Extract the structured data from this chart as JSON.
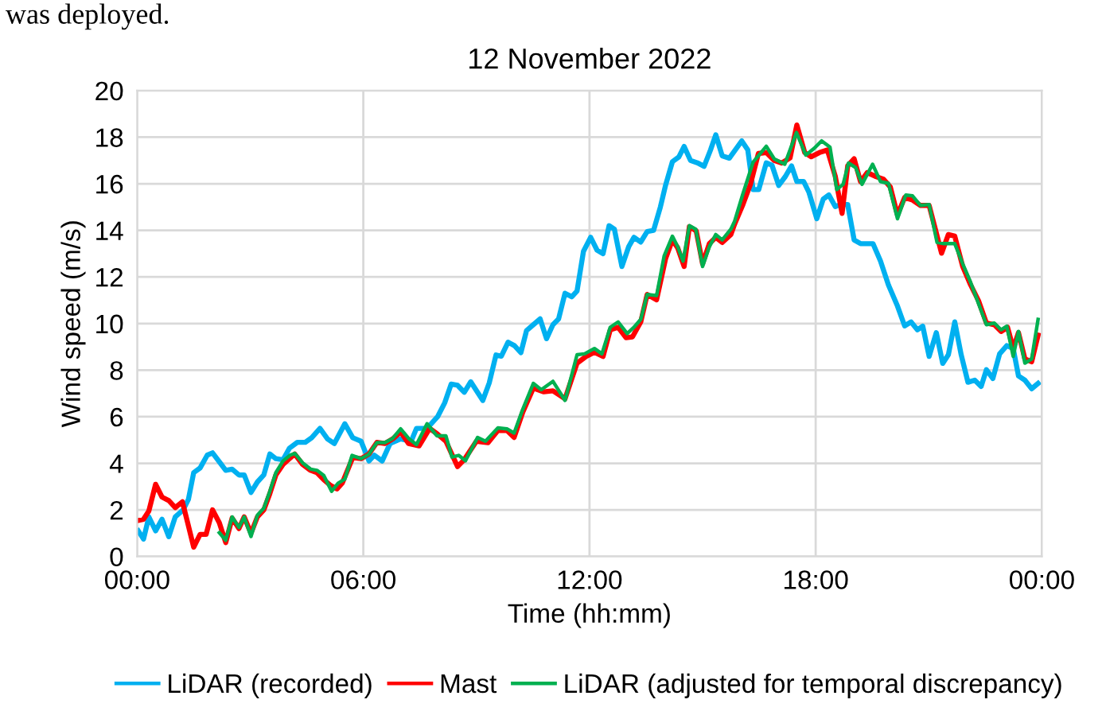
{
  "chart_data": {
    "type": "line",
    "title": "12 November 2022",
    "xlabel": "Time (hh:mm)",
    "ylabel": "Wind speed (m/s)",
    "annotations": [
      "was deployed."
    ],
    "xlim": [
      0,
      24
    ],
    "xticks": [
      {
        "value": 0,
        "label": "00:00"
      },
      {
        "value": 6,
        "label": "06:00"
      },
      {
        "value": 12,
        "label": "12:00"
      },
      {
        "value": 18,
        "label": "18:00"
      },
      {
        "value": 24,
        "label": "00:00"
      }
    ],
    "ylim": [
      0,
      20
    ],
    "yticks": [
      0,
      2,
      4,
      6,
      8,
      10,
      12,
      14,
      16,
      18,
      20
    ],
    "grid": true,
    "legend": "bottom",
    "marker": "none",
    "line_style": "solid",
    "series": [
      {
        "name": "LiDAR (recorded)",
        "color": "#00b0f0",
        "x": [
          0.03,
          0.17,
          0.31,
          0.49,
          0.66,
          0.84,
          1.01,
          1.22,
          1.36,
          1.5,
          1.67,
          1.86,
          2.0,
          2.21,
          2.35,
          2.52,
          2.7,
          2.84,
          3.02,
          3.19,
          3.36,
          3.52,
          3.68,
          3.87,
          4.04,
          4.25,
          4.46,
          4.63,
          4.85,
          5.05,
          5.23,
          5.51,
          5.72,
          5.94,
          6.15,
          6.29,
          6.5,
          6.71,
          6.99,
          7.27,
          7.41,
          7.69,
          7.97,
          8.16,
          8.33,
          8.5,
          8.68,
          8.85,
          9.03,
          9.17,
          9.34,
          9.52,
          9.66,
          9.84,
          10.01,
          10.18,
          10.33,
          10.51,
          10.69,
          10.86,
          11.03,
          11.18,
          11.35,
          11.53,
          11.67,
          11.84,
          12.03,
          12.2,
          12.36,
          12.52,
          12.66,
          12.86,
          13.04,
          13.18,
          13.36,
          13.53,
          13.7,
          13.88,
          14.02,
          14.2,
          14.37,
          14.51,
          14.68,
          14.86,
          15.04,
          15.21,
          15.35,
          15.52,
          15.71,
          16.04,
          16.2,
          16.34,
          16.49,
          16.69,
          16.84,
          17.02,
          17.19,
          17.36,
          17.5,
          17.68,
          17.82,
          18.03,
          18.2,
          18.35,
          18.52,
          18.66,
          18.85,
          19.02,
          19.19,
          19.52,
          19.72,
          19.93,
          20.17,
          20.36,
          20.53,
          20.7,
          20.84,
          21.01,
          21.2,
          21.37,
          21.52,
          21.69,
          21.86,
          22.04,
          22.22,
          22.39,
          22.53,
          22.7,
          22.88,
          23.07,
          23.24,
          23.38,
          23.55,
          23.73,
          23.9
        ],
        "values": [
          1.1,
          0.75,
          1.7,
          1.1,
          1.6,
          0.85,
          1.7,
          2.0,
          2.45,
          3.6,
          3.8,
          4.35,
          4.45,
          4.0,
          3.7,
          3.75,
          3.5,
          3.5,
          2.75,
          3.2,
          3.5,
          4.4,
          4.2,
          4.15,
          4.65,
          4.9,
          4.9,
          5.1,
          5.5,
          5.05,
          4.85,
          5.7,
          5.1,
          4.95,
          4.1,
          4.35,
          4.1,
          4.85,
          5.05,
          4.95,
          5.5,
          5.5,
          6.0,
          6.6,
          7.4,
          7.35,
          7.05,
          7.5,
          7.05,
          6.7,
          7.45,
          8.65,
          8.6,
          9.2,
          9.05,
          8.75,
          9.7,
          9.95,
          10.2,
          9.35,
          9.95,
          10.2,
          11.3,
          11.15,
          11.4,
          13.1,
          13.7,
          13.15,
          13.0,
          14.2,
          14.05,
          12.45,
          13.3,
          13.7,
          13.5,
          13.95,
          14.0,
          15.0,
          15.95,
          16.95,
          17.15,
          17.6,
          17.0,
          16.9,
          16.75,
          17.45,
          18.1,
          17.2,
          17.1,
          17.84,
          17.45,
          15.75,
          15.75,
          16.9,
          16.8,
          15.93,
          16.3,
          16.77,
          16.1,
          16.1,
          15.64,
          14.5,
          15.34,
          15.52,
          15.02,
          15.11,
          15.11,
          13.59,
          13.43,
          13.43,
          12.68,
          11.66,
          10.75,
          9.9,
          10.07,
          9.73,
          9.89,
          8.59,
          9.61,
          8.29,
          8.66,
          10.07,
          8.66,
          7.48,
          7.57,
          7.3,
          8.02,
          7.64,
          8.7,
          9.05,
          8.93,
          7.75,
          7.57,
          7.2,
          7.43
        ]
      },
      {
        "name": "Mast",
        "color": "#ff0000",
        "x": [
          0.03,
          0.17,
          0.31,
          0.49,
          0.66,
          0.84,
          1.01,
          1.2,
          1.34,
          1.5,
          1.67,
          1.83,
          2.0,
          2.18,
          2.35,
          2.52,
          2.7,
          2.84,
          3.02,
          3.19,
          3.36,
          3.52,
          3.68,
          3.87,
          4.04,
          4.18,
          4.39,
          4.6,
          4.77,
          4.95,
          5.13,
          5.3,
          5.44,
          5.72,
          5.94,
          6.15,
          6.36,
          6.57,
          6.78,
          6.99,
          7.2,
          7.48,
          7.76,
          7.97,
          8.19,
          8.5,
          8.68,
          9.0,
          9.31,
          9.57,
          9.81,
          10.0,
          10.23,
          10.51,
          10.79,
          11.03,
          11.35,
          11.67,
          11.91,
          12.13,
          12.36,
          12.55,
          12.76,
          12.97,
          13.14,
          13.36,
          13.53,
          13.78,
          14.02,
          14.2,
          14.34,
          14.51,
          14.65,
          14.83,
          15.0,
          15.18,
          15.35,
          15.52,
          15.75,
          15.85,
          16.06,
          16.27,
          16.48,
          16.69,
          16.9,
          17.1,
          17.32,
          17.5,
          17.71,
          17.88,
          18.1,
          18.31,
          18.52,
          18.7,
          18.85,
          19.02,
          19.19,
          19.37,
          19.58,
          19.8,
          19.98,
          20.17,
          20.36,
          20.57,
          20.78,
          21.01,
          21.2,
          21.34,
          21.52,
          21.69,
          21.9,
          22.11,
          22.32,
          22.53,
          22.74,
          22.92,
          23.09,
          23.24,
          23.38,
          23.55,
          23.73,
          23.9
        ],
        "values": [
          1.55,
          1.6,
          1.95,
          3.1,
          2.55,
          2.4,
          2.1,
          2.35,
          1.45,
          0.4,
          0.95,
          0.95,
          2.0,
          1.45,
          0.6,
          1.65,
          1.2,
          1.7,
          1.0,
          1.7,
          2.0,
          2.7,
          3.5,
          3.95,
          4.2,
          4.4,
          3.95,
          3.7,
          3.6,
          3.3,
          3.05,
          2.9,
          3.15,
          4.25,
          4.2,
          4.4,
          4.9,
          4.85,
          5.05,
          5.35,
          4.85,
          4.75,
          5.5,
          5.25,
          4.95,
          3.86,
          4.16,
          4.95,
          4.89,
          5.41,
          5.41,
          5.11,
          6.2,
          7.23,
          7.07,
          7.11,
          6.77,
          8.3,
          8.59,
          8.77,
          8.59,
          9.73,
          9.84,
          9.39,
          9.43,
          10.07,
          11.25,
          11.02,
          12.8,
          13.59,
          13.25,
          12.45,
          14.16,
          13.98,
          12.57,
          13.43,
          13.7,
          13.48,
          13.82,
          14.27,
          15.07,
          15.98,
          17.3,
          17.34,
          17.0,
          16.89,
          17.11,
          18.52,
          17.34,
          17.16,
          17.34,
          17.45,
          16.32,
          14.73,
          16.77,
          17.07,
          16.09,
          16.48,
          16.32,
          16.2,
          15.86,
          14.66,
          15.41,
          15.3,
          15.07,
          15.07,
          13.89,
          13.02,
          13.82,
          13.75,
          12.45,
          11.66,
          10.98,
          10.02,
          9.95,
          9.66,
          9.84,
          8.93,
          9.61,
          8.48,
          8.36,
          9.5
        ]
      },
      {
        "name": "LiDAR (adjusted for temporal discrepancy)",
        "color": "#00b050",
        "x": [
          2.18,
          2.35,
          2.52,
          2.7,
          2.84,
          3.02,
          3.19,
          3.36,
          3.52,
          3.68,
          3.87,
          4.06,
          4.18,
          4.39,
          4.6,
          4.77,
          4.95,
          5.16,
          5.33,
          5.51,
          5.7,
          5.94,
          6.15,
          6.36,
          6.57,
          6.78,
          6.99,
          7.2,
          7.41,
          7.69,
          7.95,
          8.19,
          8.35,
          8.53,
          8.71,
          9.03,
          9.24,
          9.57,
          9.81,
          10.0,
          10.23,
          10.51,
          10.72,
          11.03,
          11.35,
          11.67,
          11.87,
          12.13,
          12.33,
          12.55,
          12.76,
          13.0,
          13.18,
          13.36,
          13.53,
          13.78,
          13.98,
          14.2,
          14.34,
          14.48,
          14.65,
          14.82,
          15.0,
          15.18,
          15.35,
          15.52,
          15.75,
          15.85,
          16.06,
          16.34,
          16.69,
          16.9,
          17.18,
          17.49,
          17.74,
          17.96,
          18.16,
          18.38,
          18.56,
          18.73,
          18.87,
          19.06,
          19.23,
          19.51,
          19.72,
          19.93,
          20.17,
          20.39,
          20.57,
          20.78,
          21.01,
          21.22,
          21.4,
          21.69,
          21.9,
          22.11,
          22.32,
          22.53,
          22.74,
          22.92,
          23.07,
          23.24,
          23.38,
          23.55,
          23.73,
          23.9
        ],
        "values": [
          1.02,
          0.7,
          1.7,
          1.25,
          1.7,
          0.86,
          1.77,
          2.07,
          2.8,
          3.6,
          4.1,
          4.35,
          4.43,
          4.02,
          3.75,
          3.7,
          3.48,
          2.8,
          3.14,
          3.32,
          4.34,
          4.2,
          4.39,
          4.89,
          4.89,
          5.07,
          5.48,
          5.07,
          4.8,
          5.7,
          5.18,
          5.18,
          4.27,
          4.34,
          4.11,
          5.11,
          4.95,
          5.52,
          5.48,
          5.3,
          6.32,
          7.43,
          7.16,
          7.52,
          6.7,
          8.66,
          8.7,
          8.93,
          8.7,
          9.84,
          10.07,
          9.57,
          9.84,
          10.18,
          11.25,
          11.2,
          12.9,
          13.75,
          13.3,
          12.68,
          14.2,
          14.05,
          12.45,
          13.3,
          13.82,
          13.59,
          14.05,
          14.39,
          15.52,
          16.93,
          17.61,
          17.07,
          16.84,
          18.2,
          17.23,
          17.52,
          17.84,
          17.57,
          15.75,
          15.98,
          16.89,
          16.7,
          15.98,
          16.84,
          16.09,
          16.02,
          14.5,
          15.52,
          15.48,
          15.07,
          15.11,
          13.48,
          13.43,
          13.43,
          12.57,
          11.77,
          10.86,
          9.95,
          10.02,
          9.73,
          9.89,
          8.59,
          9.66,
          8.3,
          8.48,
          10.18
        ]
      }
    ]
  }
}
